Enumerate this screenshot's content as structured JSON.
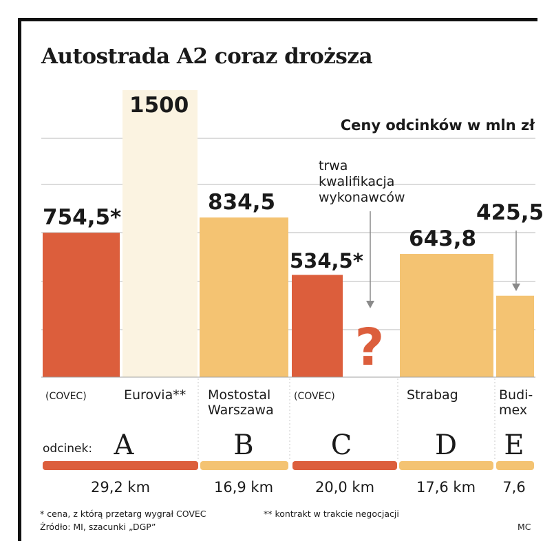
{
  "chart_data": {
    "type": "bar",
    "title": "Autostrada A2 coraz droższa",
    "subtitle": "Ceny odcinków w mln zł",
    "unit": "mln zł",
    "annotation": "trwa kwalifikacja wykonawców",
    "annotation_lines": [
      "trwa",
      "kwalifikacja",
      "wykonawców"
    ],
    "unknown_marker": "?",
    "section_prefix": "odcinek:",
    "colors": {
      "covec": "#dc5e3c",
      "other": "#f4c372",
      "eurovia": "#fbf3e1",
      "track": "#dcdcdc"
    },
    "bars": [
      {
        "section": "A",
        "label_lines": [
          "(COVEC)"
        ],
        "value": 754.5,
        "value_label": "754,5*",
        "color": "#dc5e3c"
      },
      {
        "section": "A",
        "label_lines": [
          "Eurovia**"
        ],
        "value": 1500,
        "value_label": "1500",
        "color": "#fbf3e1"
      },
      {
        "section": "B",
        "label_lines": [
          "Mostostal",
          "Warszawa"
        ],
        "value": 834.5,
        "value_label": "834,5",
        "color": "#f4c372"
      },
      {
        "section": "C",
        "label_lines": [
          "(COVEC)"
        ],
        "value": 534.5,
        "value_label": "534,5*",
        "color": "#dc5e3c"
      },
      {
        "section": "C",
        "label_lines": [
          ""
        ],
        "value": null,
        "value_label": "?",
        "color": "#dc5e3c"
      },
      {
        "section": "D",
        "label_lines": [
          "Strabag"
        ],
        "value": 643.8,
        "value_label": "643,8",
        "color": "#f4c372"
      },
      {
        "section": "E",
        "label_lines": [
          "Budi-",
          "mex"
        ],
        "value": 425.5,
        "value_label": "425,5",
        "color": "#f4c372"
      }
    ],
    "sections": [
      {
        "letter": "A",
        "length_label": "29,2 km",
        "length_km": 29.2,
        "color": "#dc5e3c"
      },
      {
        "letter": "B",
        "length_label": "16,9 km",
        "length_km": 16.9,
        "color": "#f4c372"
      },
      {
        "letter": "C",
        "length_label": "20,0 km",
        "length_km": 20.0,
        "color": "#dc5e3c"
      },
      {
        "letter": "D",
        "length_label": "17,6 km",
        "length_km": 17.6,
        "color": "#f4c372"
      },
      {
        "letter": "E",
        "length_label": "7,6",
        "length_km": 7.6,
        "color": "#f4c372"
      }
    ],
    "footnotes": [
      "* cena, z którą przetarg wygrał COVEC",
      "** kontrakt w trakcie negocjacji"
    ],
    "source": "Źródło: MI, szacunki „DGP”",
    "author": "MC",
    "ylim": [
      0,
      1500
    ],
    "grid": true,
    "legend": "none"
  }
}
